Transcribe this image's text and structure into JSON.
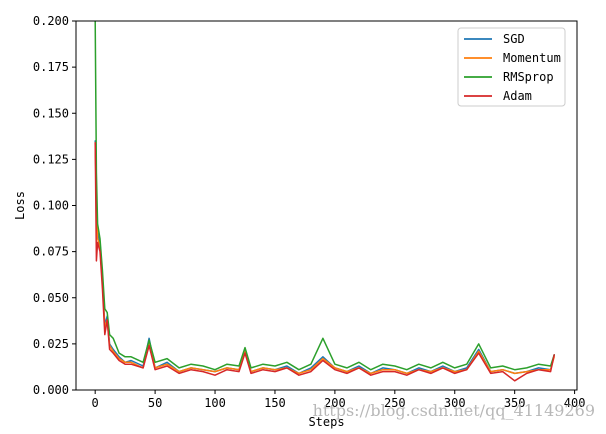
{
  "chart_data": {
    "type": "line",
    "xlabel": "Steps",
    "ylabel": "Loss",
    "xlim": [
      -16,
      402
    ],
    "ylim": [
      0,
      0.2
    ],
    "xticks": [
      0,
      50,
      100,
      150,
      200,
      250,
      300,
      350,
      400
    ],
    "yticks": [
      0.0,
      0.025,
      0.05,
      0.075,
      0.1,
      0.125,
      0.15,
      0.175,
      0.2
    ],
    "ytick_labels": [
      "0.000",
      "0.025",
      "0.050",
      "0.075",
      "0.100",
      "0.125",
      "0.150",
      "0.175",
      "0.200"
    ],
    "legend_position": "top-right",
    "grid": false,
    "series": [
      {
        "name": "SGD",
        "color": "#1f77b4",
        "x": [
          0,
          1,
          2,
          4,
          6,
          8,
          10,
          12,
          15,
          20,
          25,
          30,
          40,
          45,
          50,
          60,
          70,
          80,
          90,
          100,
          110,
          120,
          125,
          130,
          140,
          150,
          160,
          170,
          180,
          190,
          200,
          210,
          220,
          230,
          240,
          250,
          260,
          270,
          280,
          290,
          300,
          310,
          320,
          330,
          340,
          350,
          360,
          370,
          380,
          383
        ],
        "values": [
          0.135,
          0.105,
          0.085,
          0.08,
          0.06,
          0.035,
          0.04,
          0.025,
          0.022,
          0.018,
          0.015,
          0.016,
          0.013,
          0.028,
          0.012,
          0.015,
          0.01,
          0.012,
          0.011,
          0.01,
          0.012,
          0.011,
          0.022,
          0.01,
          0.012,
          0.011,
          0.013,
          0.009,
          0.012,
          0.018,
          0.012,
          0.01,
          0.013,
          0.009,
          0.012,
          0.011,
          0.009,
          0.012,
          0.01,
          0.013,
          0.01,
          0.012,
          0.022,
          0.01,
          0.011,
          0.009,
          0.01,
          0.012,
          0.011,
          0.019
        ]
      },
      {
        "name": "Momentum",
        "color": "#ff7f0e",
        "x": [
          0,
          1,
          2,
          4,
          6,
          8,
          10,
          12,
          15,
          20,
          25,
          30,
          40,
          45,
          50,
          60,
          70,
          80,
          90,
          100,
          110,
          120,
          125,
          130,
          140,
          150,
          160,
          170,
          180,
          190,
          200,
          210,
          220,
          230,
          240,
          250,
          260,
          270,
          280,
          290,
          300,
          310,
          320,
          330,
          340,
          350,
          360,
          370,
          380,
          383
        ],
        "values": [
          0.134,
          0.1,
          0.082,
          0.078,
          0.058,
          0.034,
          0.038,
          0.024,
          0.021,
          0.017,
          0.015,
          0.015,
          0.012,
          0.026,
          0.012,
          0.014,
          0.01,
          0.012,
          0.011,
          0.01,
          0.012,
          0.011,
          0.021,
          0.01,
          0.012,
          0.011,
          0.012,
          0.009,
          0.011,
          0.017,
          0.012,
          0.01,
          0.012,
          0.009,
          0.011,
          0.011,
          0.009,
          0.011,
          0.01,
          0.012,
          0.01,
          0.011,
          0.021,
          0.01,
          0.011,
          0.009,
          0.01,
          0.011,
          0.011,
          0.018
        ]
      },
      {
        "name": "RMSprop",
        "color": "#2ca02c",
        "x": [
          0,
          1,
          2,
          4,
          6,
          8,
          10,
          12,
          15,
          20,
          25,
          30,
          40,
          45,
          50,
          60,
          70,
          80,
          90,
          100,
          110,
          120,
          125,
          130,
          140,
          150,
          160,
          170,
          180,
          190,
          200,
          210,
          220,
          230,
          240,
          250,
          260,
          270,
          280,
          290,
          300,
          310,
          320,
          330,
          340,
          350,
          360,
          370,
          380,
          383
        ],
        "values": [
          0.2,
          0.118,
          0.09,
          0.082,
          0.065,
          0.044,
          0.042,
          0.03,
          0.028,
          0.02,
          0.018,
          0.018,
          0.015,
          0.027,
          0.015,
          0.017,
          0.012,
          0.014,
          0.013,
          0.011,
          0.014,
          0.013,
          0.023,
          0.012,
          0.014,
          0.013,
          0.015,
          0.011,
          0.014,
          0.028,
          0.014,
          0.012,
          0.015,
          0.011,
          0.014,
          0.013,
          0.011,
          0.014,
          0.012,
          0.015,
          0.012,
          0.014,
          0.025,
          0.012,
          0.013,
          0.011,
          0.012,
          0.014,
          0.013,
          0.019
        ]
      },
      {
        "name": "Adam",
        "color": "#d62728",
        "x": [
          0,
          1,
          2,
          4,
          6,
          8,
          10,
          12,
          15,
          20,
          25,
          30,
          40,
          45,
          50,
          60,
          70,
          80,
          90,
          100,
          110,
          120,
          125,
          130,
          140,
          150,
          160,
          170,
          180,
          190,
          200,
          210,
          220,
          230,
          240,
          250,
          260,
          270,
          280,
          290,
          300,
          310,
          320,
          330,
          340,
          350,
          360,
          370,
          380,
          383
        ],
        "values": [
          0.134,
          0.07,
          0.08,
          0.075,
          0.055,
          0.03,
          0.038,
          0.022,
          0.02,
          0.016,
          0.014,
          0.014,
          0.012,
          0.024,
          0.011,
          0.013,
          0.009,
          0.011,
          0.01,
          0.008,
          0.011,
          0.01,
          0.02,
          0.009,
          0.011,
          0.01,
          0.012,
          0.008,
          0.01,
          0.016,
          0.011,
          0.009,
          0.012,
          0.008,
          0.01,
          0.01,
          0.008,
          0.011,
          0.009,
          0.012,
          0.009,
          0.011,
          0.02,
          0.009,
          0.01,
          0.005,
          0.009,
          0.011,
          0.01,
          0.019
        ]
      }
    ]
  },
  "watermark": {
    "text": "https://blog.csdn.net/qq_41149269"
  }
}
